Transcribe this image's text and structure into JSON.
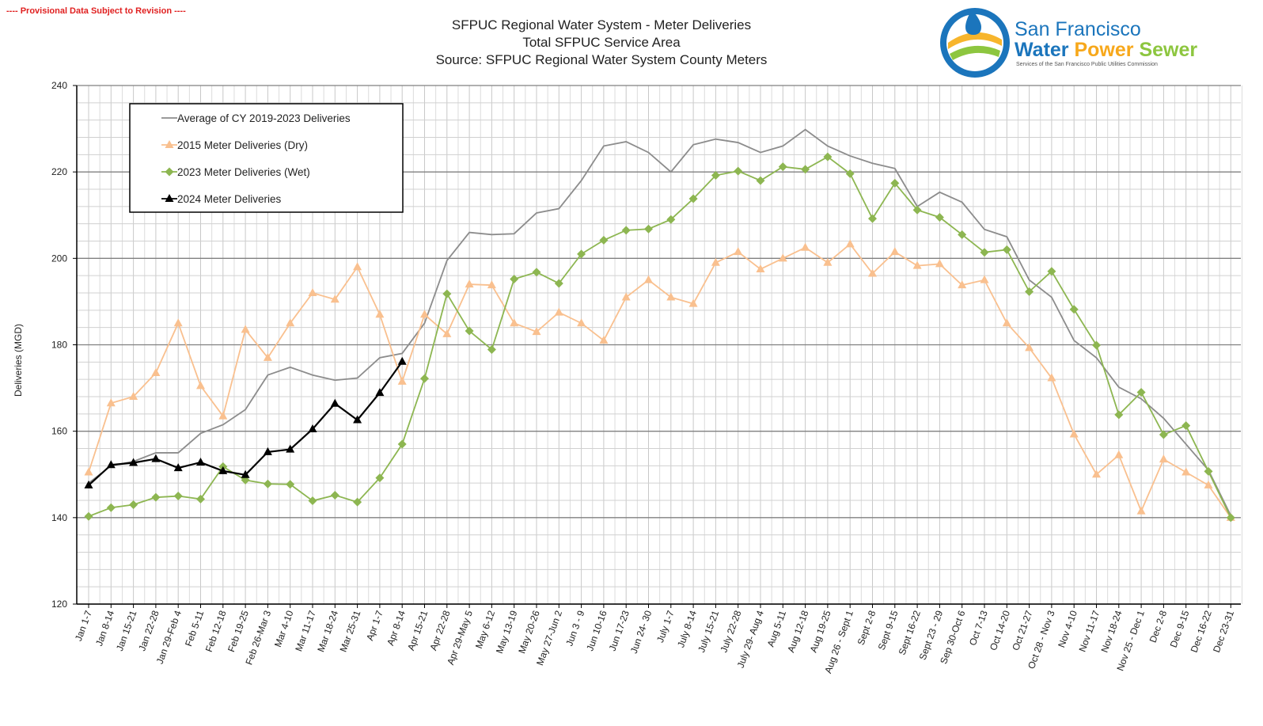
{
  "notice": "---- Provisional Data Subject to Revision ----",
  "logo": {
    "line1": "San Francisco",
    "line2a": "Water",
    "line2b": "Power",
    "line2c": "Sewer",
    "line3": "Services of the San Francisco Public Utilities Commission"
  },
  "chart_data": {
    "type": "line",
    "title": "SFPUC Regional Water System - Meter Deliveries",
    "subtitle": "Total SFPUC Service Area",
    "source": "Source:  SFPUC Regional Water System County Meters",
    "y_label": "Deliveries (MGD)",
    "legend": "upper-left",
    "grid": true,
    "ylim": [
      120,
      240
    ],
    "yticks": [
      120,
      140,
      160,
      180,
      200,
      220,
      240
    ],
    "categories": [
      "Jan 1-7",
      "Jan 8-14",
      "Jan 15-21",
      "Jan 22-28",
      "Jan 29-Feb 4",
      "Feb 5-11",
      "Feb 12-18",
      "Feb 19-25",
      "Feb 26-Mar 3",
      "Mar 4-10",
      "Mar 11-17",
      "Mar 18-24",
      "Mar 25-31",
      "Apr 1-7",
      "Apr 8-14",
      "Apr 15-21",
      "Apr 22-28",
      "Apr 29-May 5",
      "May 6-12",
      "May 13-19",
      "May 20-26",
      "May 27-Jun 2",
      "Jun 3 - 9",
      "Jun 10-16",
      "Jun 17-23",
      "Jun 24- 30",
      "July 1-7",
      "July 8-14",
      "July 15-21",
      "July 22-28",
      "July 29- Aug 4",
      "Aug 5-11",
      "Aug 12-18",
      "Aug 19-25",
      "Aug 26 - Sept 1",
      "Sept 2-8",
      "Sept 9-15",
      "Sept 16-22",
      "Sept 23 - 29",
      "Sep 30-Oct 6",
      "Oct 7-13",
      "Oct 14-20",
      "Oct 21-27",
      "Oct 28 - Nov 3",
      "Nov 4-10",
      "Nov 11-17",
      "Nov 18-24",
      "Nov 25 - Dec 1",
      "Dec 2-8",
      "Dec 9-15",
      "Dec 16-22",
      "Dec 23-31"
    ],
    "series": [
      {
        "name": "Average of CY 2019-2023 Deliveries",
        "color": "#8c8c8c",
        "marker": "none",
        "values": [
          148,
          152,
          153,
          155,
          155,
          159.5,
          161.5,
          165,
          173,
          174.8,
          173,
          171.8,
          172.3,
          177,
          178,
          185,
          199.5,
          206,
          205.5,
          205.7,
          210.5,
          211.5,
          218,
          226,
          227,
          224.5,
          220,
          226.3,
          227.6,
          226.8,
          224.5,
          226,
          229.8,
          226,
          223.7,
          222,
          220.8,
          212,
          215.3,
          213,
          206.7,
          205,
          195,
          191,
          181,
          177,
          170.2,
          167.5,
          163,
          157,
          151,
          140.5
        ]
      },
      {
        "name": "2015 Meter Deliveries (Dry)",
        "color": "#f9c08f",
        "marker": "triangle",
        "values": [
          150.5,
          166.5,
          168,
          173.5,
          185,
          170.5,
          163.5,
          183.5,
          177,
          185,
          192,
          190.5,
          198,
          187,
          171.5,
          187,
          182.5,
          194,
          193.8,
          185,
          183,
          187.5,
          185,
          181,
          191,
          195,
          191,
          189.5,
          199,
          201.5,
          197.5,
          200,
          202.5,
          199,
          203.3,
          196.5,
          201.5,
          198.3,
          198.7,
          193.8,
          195,
          185,
          179.3,
          172.3,
          159.3,
          150,
          154.5,
          141.5,
          153.5,
          150.5,
          147.5,
          140
        ]
      },
      {
        "name": "2023 Meter Deliveries (Wet)",
        "color": "#8db651",
        "marker": "diamond",
        "values": [
          140.3,
          142.3,
          143,
          144.7,
          145,
          144.3,
          151.8,
          148.7,
          147.8,
          147.7,
          143.9,
          145.2,
          143.6,
          149.2,
          157,
          172.2,
          191.8,
          183.2,
          178.9,
          195.2,
          196.8,
          194.2,
          201,
          204.2,
          206.5,
          206.8,
          209,
          213.8,
          219.2,
          220.2,
          218,
          221.2,
          220.6,
          223.5,
          219.6,
          209.2,
          217.4,
          211.2,
          209.5,
          205.5,
          201.4,
          202,
          192.3,
          197,
          188.2,
          179.9,
          163.8,
          169,
          159.2,
          161.3,
          150.7,
          140
        ]
      },
      {
        "name": "2024 Meter Deliveries",
        "color": "#000000",
        "marker": "triangle",
        "values": [
          147.5,
          152.2,
          152.7,
          153.6,
          151.5,
          152.8,
          150.8,
          149.9,
          155.2,
          155.8,
          160.5,
          166.4,
          162.6,
          168.9,
          176.1,
          null,
          null,
          null,
          null,
          null,
          null,
          null,
          null,
          null,
          null,
          null,
          null,
          null,
          null,
          null,
          null,
          null,
          null,
          null,
          null,
          null,
          null,
          null,
          null,
          null,
          null,
          null,
          null,
          null,
          null,
          null,
          null,
          null,
          null,
          null,
          null,
          null
        ]
      }
    ]
  }
}
